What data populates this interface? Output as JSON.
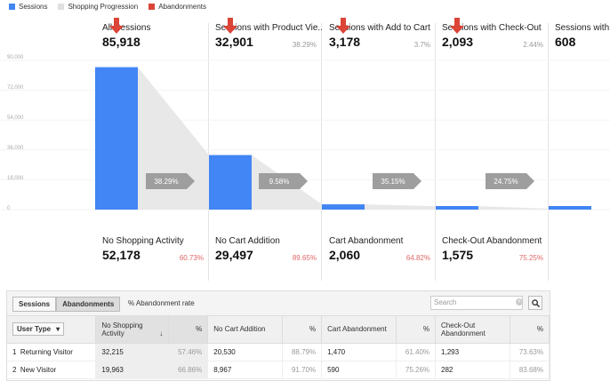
{
  "legend": [
    {
      "label": "Sessions",
      "color": "#4285f4"
    },
    {
      "label": "Shopping Progression",
      "color": "#e0e0e0"
    },
    {
      "label": "Abandonments",
      "color": "#db4437"
    }
  ],
  "axis": {
    "ticks": [
      "90,000",
      "72,000",
      "54,000",
      "36,000",
      "18,000",
      "0"
    ]
  },
  "stages": [
    {
      "name": "All Sessions",
      "value": "85,918",
      "pct": ""
    },
    {
      "name": "Sessions with Product Vie...",
      "value": "32,901",
      "pct": "38.29%"
    },
    {
      "name": "Sessions with Add to Cart",
      "value": "3,178",
      "pct": "3.7%"
    },
    {
      "name": "Sessions with Check-Out",
      "value": "2,093",
      "pct": "2.44%"
    },
    {
      "name": "Sessions with T",
      "value": "608",
      "pct": ""
    }
  ],
  "conversions": [
    "38.29%",
    "9.58%",
    "35.15%",
    "24.75%"
  ],
  "abandonments": [
    {
      "name": "No Shopping Activity",
      "value": "52,178",
      "pct": "60.73%"
    },
    {
      "name": "No Cart Addition",
      "value": "29,497",
      "pct": "89.65%"
    },
    {
      "name": "Cart Abandonment",
      "value": "2,060",
      "pct": "64.82%"
    },
    {
      "name": "Check-Out Abandonment",
      "value": "1,575",
      "pct": "75.25%"
    }
  ],
  "chart_data": {
    "type": "bar",
    "categories": [
      "All Sessions",
      "Sessions with Product Views",
      "Sessions with Add to Cart",
      "Sessions with Check-Out",
      "Sessions with Transactions"
    ],
    "values": [
      85918,
      32901,
      3178,
      2093,
      608
    ],
    "ylim": [
      0,
      90000
    ],
    "color": "#4285f4"
  },
  "table": {
    "tabs": [
      "Sessions",
      "Abandonments"
    ],
    "active_tab": "Abandonments",
    "rate_label": "% Abandonment rate",
    "search_placeholder": "Search",
    "user_type_label": "User Type",
    "columns": [
      "No Shopping Activity",
      "%",
      "No Cart Addition",
      "%",
      "Cart Abandonment",
      "%",
      "Check-Out Abandonment",
      "%"
    ],
    "rows": [
      {
        "idx": "1",
        "type": "Returning Visitor",
        "c": [
          "32,215",
          "57.46%",
          "20,530",
          "88.79%",
          "1,470",
          "61.40%",
          "1,293",
          "73.63%"
        ]
      },
      {
        "idx": "2",
        "type": "New Visitor",
        "c": [
          "19,963",
          "66.86%",
          "8,967",
          "91.70%",
          "590",
          "75.26%",
          "282",
          "83.68%"
        ]
      }
    ]
  }
}
